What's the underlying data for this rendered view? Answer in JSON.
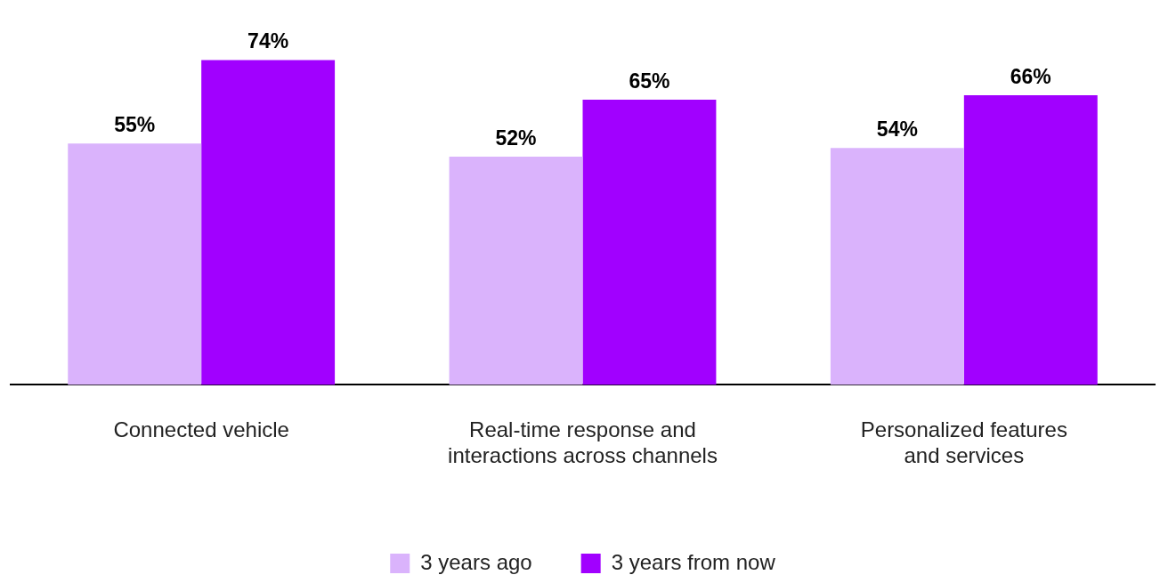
{
  "chart_data": {
    "type": "bar",
    "categories": [
      "Connected vehicle",
      "Real-time response and interactions across channels",
      "Personalized features and services"
    ],
    "series": [
      {
        "name": "3 years ago",
        "color": "#dab3fc",
        "values": [
          55,
          52,
          54
        ],
        "value_labels": [
          "55%",
          "52%",
          "54%"
        ]
      },
      {
        "name": "3 years from now",
        "color": "#a100ff",
        "values": [
          74,
          65,
          66
        ],
        "value_labels": [
          "74%",
          "65%",
          "66%"
        ]
      }
    ],
    "tick_labels": "x",
    "grid": false,
    "legend": "bottom"
  }
}
